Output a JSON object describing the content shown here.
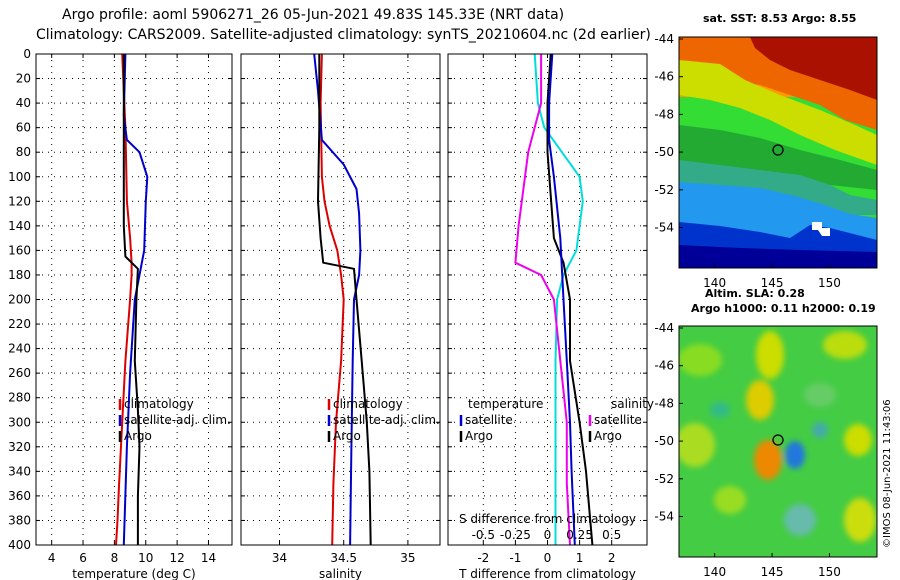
{
  "header": {
    "line1": "Argo profile: aoml 5906271_26 05-Jun-2021 49.83S 145.33E (NRT data)",
    "line2": "Climatology: CARS2009. Satellite-adjusted climatology: synTS_20210604.nc (2d earlier)"
  },
  "colors": {
    "climatology": "#dd0000",
    "satellite": "#0000cc",
    "argo": "#000000",
    "t_sat": "#00dddd",
    "s_sat": "#ee00ee"
  },
  "legend": {
    "climatology": "climatology",
    "satellite_adj": "satellite-adj. clim.",
    "argo": "Argo",
    "temperature": "temperature",
    "salinity": "salinity",
    "satellite": "satellite"
  },
  "chart_data": [
    {
      "type": "line",
      "id": "temperature",
      "xlabel": "temperature (deg C)",
      "xlim": [
        3,
        15.5
      ],
      "xticks": [
        4,
        6,
        8,
        10,
        12,
        14
      ],
      "ylim": [
        0,
        400
      ],
      "yticks": [
        0,
        20,
        40,
        60,
        80,
        100,
        120,
        140,
        160,
        180,
        200,
        220,
        240,
        260,
        280,
        300,
        320,
        340,
        360,
        380,
        400
      ],
      "series": [
        {
          "name": "climatology",
          "color": "#dd0000",
          "x": [
            8.5,
            8.7,
            8.8,
            9.0,
            9.1,
            9.1,
            9.0,
            8.7,
            8.5,
            8.3,
            8.2,
            8.1
          ],
          "y": [
            0,
            60,
            120,
            150,
            170,
            180,
            200,
            250,
            300,
            350,
            380,
            400
          ]
        },
        {
          "name": "satellite-adj. clim.",
          "color": "#0000cc",
          "x": [
            8.7,
            8.6,
            8.8,
            9.6,
            10.1,
            10.0,
            9.9,
            9.6,
            9.3,
            9.0,
            8.8,
            8.6
          ],
          "y": [
            0,
            50,
            70,
            80,
            100,
            120,
            160,
            180,
            200,
            260,
            320,
            400
          ]
        },
        {
          "name": "Argo",
          "color": "#000000",
          "x": [
            8.6,
            8.6,
            8.6,
            8.7,
            9.5,
            9.4,
            9.3,
            9.5,
            9.6,
            9.5,
            9.5
          ],
          "y": [
            0,
            60,
            140,
            165,
            175,
            200,
            250,
            290,
            320,
            360,
            400
          ]
        }
      ]
    },
    {
      "type": "line",
      "id": "salinity",
      "xlabel": "salinity",
      "xlim": [
        33.7,
        35.25
      ],
      "xticks": [
        34,
        34.5,
        35
      ],
      "ylim": [
        0,
        400
      ],
      "series": [
        {
          "name": "climatology",
          "color": "#dd0000",
          "x": [
            34.33,
            34.32,
            34.33,
            34.35,
            34.39,
            34.45,
            34.48,
            34.5,
            34.48,
            34.44,
            34.42,
            34.41
          ],
          "y": [
            0,
            40,
            100,
            120,
            140,
            160,
            180,
            200,
            250,
            300,
            350,
            400
          ]
        },
        {
          "name": "satellite-adj. clim.",
          "color": "#0000cc",
          "x": [
            34.27,
            34.3,
            34.33,
            34.5,
            34.6,
            34.62,
            34.63,
            34.62,
            34.58,
            34.57,
            34.56,
            34.55
          ],
          "y": [
            0,
            30,
            70,
            90,
            110,
            130,
            160,
            180,
            200,
            250,
            320,
            400
          ]
        },
        {
          "name": "Argo",
          "color": "#000000",
          "x": [
            34.31,
            34.31,
            34.3,
            34.32,
            34.34,
            34.58,
            34.6,
            34.64,
            34.68,
            34.7,
            34.71
          ],
          "y": [
            0,
            60,
            120,
            150,
            170,
            175,
            200,
            250,
            300,
            340,
            400
          ]
        }
      ]
    },
    {
      "type": "line",
      "id": "difference",
      "xlabel": "T difference from climatology",
      "xlabel_top": "S difference from climatology",
      "xlim": [
        -3.1,
        3.1
      ],
      "xticks": [
        -2,
        -1,
        0,
        1,
        2
      ],
      "xticks_top": [
        -0.5,
        -0.25,
        0,
        0.25,
        0.5
      ],
      "ylim": [
        0,
        400
      ],
      "series": [
        {
          "name": "T satellite",
          "color": "#00dddd",
          "x": [
            -0.4,
            -0.3,
            -0.1,
            1.0,
            1.1,
            0.9,
            0.5,
            0.3,
            0.25,
            0.25,
            0.25
          ],
          "y": [
            0,
            40,
            60,
            100,
            120,
            160,
            180,
            200,
            250,
            300,
            400
          ]
        },
        {
          "name": "S satellite",
          "color": "#ee00ee",
          "x": [
            -0.2,
            -0.2,
            -0.6,
            -0.9,
            -1.0,
            -0.2,
            0.2,
            0.4,
            0.6,
            0.6,
            0.7
          ],
          "y": [
            0,
            40,
            80,
            140,
            170,
            180,
            200,
            250,
            300,
            350,
            400
          ]
        },
        {
          "name": "T Argo",
          "color": "#000000",
          "x": [
            0.1,
            0.0,
            0.0,
            0.2,
            0.5,
            0.7,
            0.7,
            1.0,
            1.2,
            1.3,
            1.4
          ],
          "y": [
            0,
            40,
            80,
            150,
            170,
            200,
            250,
            300,
            340,
            370,
            400
          ]
        },
        {
          "name": "S satellite-adj.",
          "color": "#0000cc",
          "x": [
            0.15,
            0.05,
            0.05,
            0.2,
            0.4,
            0.5,
            0.6,
            0.7,
            0.75,
            0.8,
            0.85
          ],
          "y": [
            0,
            40,
            70,
            100,
            150,
            200,
            250,
            300,
            340,
            370,
            400
          ]
        }
      ]
    }
  ],
  "maps": {
    "sst": {
      "title": "sat. SST: 8.53 Argo: 8.55",
      "xticks": [
        "140",
        "145",
        "150"
      ],
      "yticks": [
        "-44",
        "-46",
        "-48",
        "-50",
        "-52",
        "-54"
      ]
    },
    "sla": {
      "title1": "Altim. SLA: 0.28",
      "title2": "Argo h1000: 0.11 h2000: 0.19",
      "xticks": [
        "140",
        "145",
        "150"
      ],
      "yticks": [
        "-44",
        "-46",
        "-48",
        "-50",
        "-52",
        "-54"
      ]
    },
    "credit": "©IMOS 08-Jun-2021 11:43:06"
  }
}
